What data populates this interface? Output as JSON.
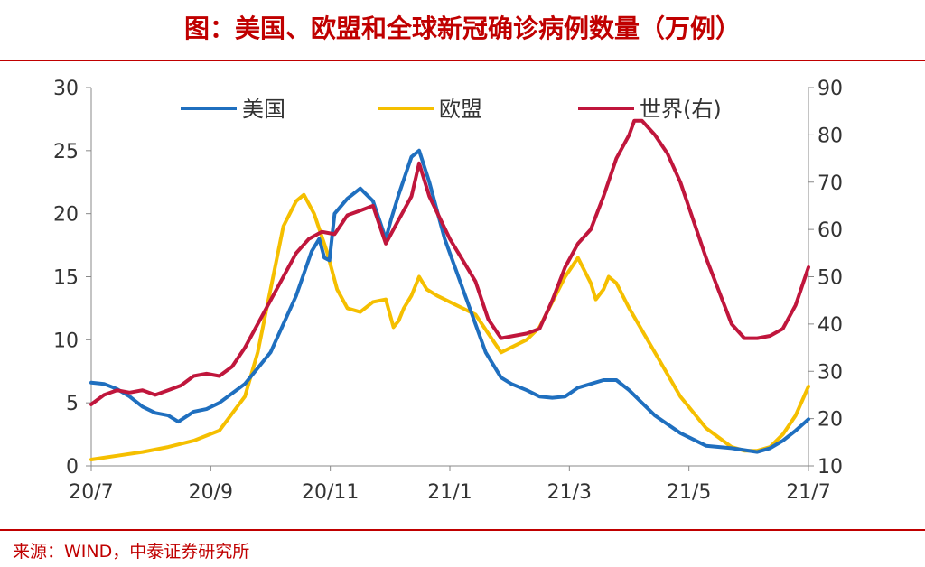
{
  "header": {
    "title": "图：美国、欧盟和全球新冠确诊病例数量（万例）"
  },
  "footer": {
    "source": "来源：WIND，中泰证券研究所"
  },
  "colors": {
    "us": "#1f6fbf",
    "eu": "#f5bf00",
    "world": "#c0163c",
    "accent": "#c00000"
  },
  "chart_data": {
    "type": "line",
    "x_ticks": [
      "20/7",
      "20/9",
      "20/11",
      "21/1",
      "21/3",
      "21/5",
      "21/7"
    ],
    "y_left": {
      "range": [
        0,
        30
      ],
      "ticks": [
        0,
        5,
        10,
        15,
        20,
        25,
        30
      ]
    },
    "y_right": {
      "range": [
        10,
        90
      ],
      "ticks": [
        10,
        20,
        30,
        40,
        50,
        60,
        70,
        80,
        90
      ]
    },
    "legend_position": "top",
    "series": [
      {
        "name": "美国",
        "axis": "left",
        "color": "#1f6fbf",
        "points": [
          [
            0,
            6.6
          ],
          [
            0.25,
            6.5
          ],
          [
            0.5,
            6.1
          ],
          [
            0.75,
            5.5
          ],
          [
            1.0,
            4.7
          ],
          [
            1.25,
            4.2
          ],
          [
            1.5,
            4.0
          ],
          [
            1.7,
            3.5
          ],
          [
            2.0,
            4.3
          ],
          [
            2.25,
            4.5
          ],
          [
            2.5,
            5.0
          ],
          [
            3.0,
            6.5
          ],
          [
            3.5,
            9.0
          ],
          [
            4.0,
            13.5
          ],
          [
            4.3,
            17.0
          ],
          [
            4.45,
            18.0
          ],
          [
            4.55,
            16.5
          ],
          [
            4.65,
            16.3
          ],
          [
            4.75,
            20.0
          ],
          [
            5.0,
            21.2
          ],
          [
            5.25,
            22.0
          ],
          [
            5.5,
            21.0
          ],
          [
            5.75,
            18.0
          ],
          [
            5.85,
            19.5
          ],
          [
            6.0,
            21.5
          ],
          [
            6.25,
            24.5
          ],
          [
            6.4,
            25.0
          ],
          [
            6.6,
            22.5
          ],
          [
            6.9,
            18.0
          ],
          [
            7.3,
            13.5
          ],
          [
            7.7,
            9.0
          ],
          [
            8.0,
            7.0
          ],
          [
            8.2,
            6.5
          ],
          [
            8.5,
            6.0
          ],
          [
            8.75,
            5.5
          ],
          [
            9.0,
            5.4
          ],
          [
            9.25,
            5.5
          ],
          [
            9.5,
            6.2
          ],
          [
            9.75,
            6.5
          ],
          [
            10.0,
            6.8
          ],
          [
            10.25,
            6.8
          ],
          [
            10.5,
            6.0
          ],
          [
            10.75,
            5.0
          ],
          [
            11.0,
            4.0
          ],
          [
            11.25,
            3.3
          ],
          [
            11.5,
            2.6
          ],
          [
            12.0,
            1.6
          ],
          [
            12.5,
            1.4
          ],
          [
            13.0,
            1.1
          ],
          [
            13.25,
            1.4
          ],
          [
            13.5,
            2.0
          ],
          [
            13.75,
            2.8
          ],
          [
            14.0,
            3.7
          ]
        ]
      },
      {
        "name": "欧盟",
        "axis": "left",
        "color": "#f5bf00",
        "points": [
          [
            0,
            0.5
          ],
          [
            0.5,
            0.8
          ],
          [
            1.0,
            1.1
          ],
          [
            1.5,
            1.5
          ],
          [
            2.0,
            2.0
          ],
          [
            2.5,
            2.8
          ],
          [
            3.0,
            5.5
          ],
          [
            3.25,
            9.0
          ],
          [
            3.5,
            14.0
          ],
          [
            3.75,
            19.0
          ],
          [
            4.0,
            21.0
          ],
          [
            4.15,
            21.5
          ],
          [
            4.35,
            20.0
          ],
          [
            4.6,
            17.0
          ],
          [
            4.8,
            14.0
          ],
          [
            5.0,
            12.5
          ],
          [
            5.25,
            12.2
          ],
          [
            5.5,
            13.0
          ],
          [
            5.75,
            13.2
          ],
          [
            5.9,
            11.0
          ],
          [
            6.0,
            11.5
          ],
          [
            6.1,
            12.5
          ],
          [
            6.25,
            13.5
          ],
          [
            6.4,
            15.0
          ],
          [
            6.55,
            14.0
          ],
          [
            6.75,
            13.5
          ],
          [
            7.0,
            13.0
          ],
          [
            7.5,
            12.0
          ],
          [
            7.75,
            10.5
          ],
          [
            8.0,
            9.0
          ],
          [
            8.25,
            9.5
          ],
          [
            8.5,
            10.0
          ],
          [
            8.75,
            11.0
          ],
          [
            9.0,
            13.0
          ],
          [
            9.25,
            15.0
          ],
          [
            9.5,
            16.5
          ],
          [
            9.75,
            14.5
          ],
          [
            9.85,
            13.2
          ],
          [
            10.0,
            14.0
          ],
          [
            10.1,
            15.0
          ],
          [
            10.25,
            14.5
          ],
          [
            10.5,
            12.5
          ],
          [
            11.0,
            9.0
          ],
          [
            11.5,
            5.5
          ],
          [
            12.0,
            3.0
          ],
          [
            12.5,
            1.5
          ],
          [
            12.75,
            1.2
          ],
          [
            13.0,
            1.2
          ],
          [
            13.25,
            1.5
          ],
          [
            13.5,
            2.5
          ],
          [
            13.75,
            4.0
          ],
          [
            14.0,
            6.3
          ]
        ]
      },
      {
        "name": "世界(右)",
        "axis": "right",
        "color": "#c0163c",
        "points": [
          [
            0,
            23
          ],
          [
            0.25,
            25
          ],
          [
            0.5,
            26
          ],
          [
            0.75,
            25.5
          ],
          [
            1.0,
            26
          ],
          [
            1.25,
            25
          ],
          [
            1.5,
            26
          ],
          [
            1.75,
            27
          ],
          [
            2.0,
            29
          ],
          [
            2.25,
            29.5
          ],
          [
            2.5,
            29
          ],
          [
            2.75,
            31
          ],
          [
            3.0,
            35
          ],
          [
            3.5,
            45
          ],
          [
            4.0,
            55
          ],
          [
            4.25,
            58
          ],
          [
            4.5,
            59.5
          ],
          [
            4.75,
            59
          ],
          [
            5.0,
            63
          ],
          [
            5.25,
            64
          ],
          [
            5.5,
            65
          ],
          [
            5.75,
            57
          ],
          [
            6.0,
            62
          ],
          [
            6.25,
            67
          ],
          [
            6.4,
            74
          ],
          [
            6.6,
            67
          ],
          [
            7.0,
            58
          ],
          [
            7.5,
            49
          ],
          [
            7.75,
            41
          ],
          [
            8.0,
            37
          ],
          [
            8.25,
            37.5
          ],
          [
            8.5,
            38
          ],
          [
            8.75,
            39
          ],
          [
            9.0,
            45
          ],
          [
            9.25,
            52
          ],
          [
            9.5,
            57
          ],
          [
            9.75,
            60
          ],
          [
            10.0,
            67
          ],
          [
            10.25,
            75
          ],
          [
            10.5,
            80
          ],
          [
            10.6,
            83
          ],
          [
            10.75,
            83
          ],
          [
            11.0,
            80
          ],
          [
            11.25,
            76
          ],
          [
            11.5,
            70
          ],
          [
            11.75,
            62
          ],
          [
            12.0,
            54
          ],
          [
            12.25,
            47
          ],
          [
            12.5,
            40
          ],
          [
            12.75,
            37
          ],
          [
            13.0,
            37
          ],
          [
            13.25,
            37.5
          ],
          [
            13.5,
            39
          ],
          [
            13.75,
            44
          ],
          [
            14.0,
            52
          ]
        ]
      }
    ]
  }
}
